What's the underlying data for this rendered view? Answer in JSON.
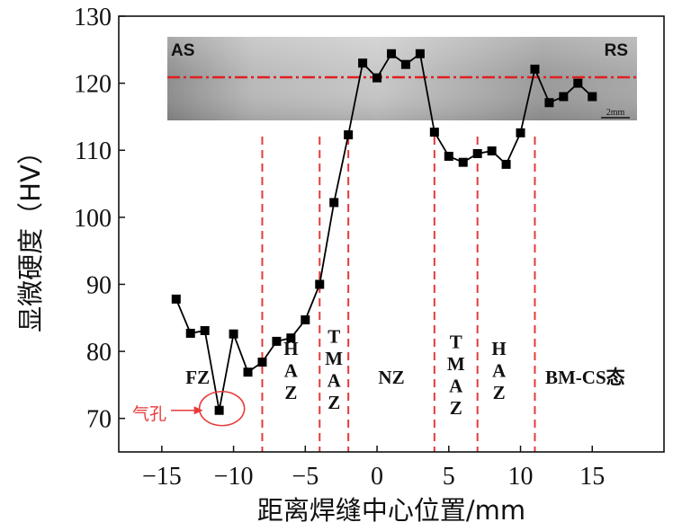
{
  "chart_data": {
    "type": "line",
    "xlabel": "距离焊缝中心位置/mm",
    "ylabel": "显微硬度（HV）",
    "xlim": [
      -18,
      20
    ],
    "ylim": [
      65,
      130
    ],
    "xticks": [
      -15,
      -10,
      -5,
      0,
      5,
      10,
      15
    ],
    "xtick_labels": [
      "−15",
      "−10",
      "−5",
      "0",
      "5",
      "10",
      "15"
    ],
    "yticks": [
      70,
      80,
      90,
      100,
      110,
      120,
      130
    ],
    "ytick_labels": [
      "70",
      "80",
      "90",
      "100",
      "110",
      "120",
      "130"
    ],
    "grid": false,
    "series": [
      {
        "marker": "square",
        "color": "#000000",
        "x": [
          -14,
          -13,
          -12,
          -11,
          -10,
          -9,
          -8,
          -7,
          -6,
          -5,
          -4,
          -3,
          -2,
          -1,
          0,
          1,
          2,
          3,
          4,
          5,
          6,
          7,
          8,
          9,
          10,
          11,
          12,
          13,
          14,
          15
        ],
        "y": [
          87.8,
          82.7,
          83.1,
          71.2,
          82.6,
          76.9,
          78.4,
          81.5,
          82.0,
          84.7,
          90.0,
          102.2,
          112.3,
          123.0,
          120.8,
          124.4,
          122.8,
          124.4,
          112.7,
          109.1,
          108.2,
          109.5,
          109.9,
          107.9,
          112.6,
          122.1,
          117.1,
          118.0,
          120.0,
          118.0
        ]
      }
    ],
    "boundaries": {
      "x": [
        -8,
        -4,
        -2,
        4,
        7,
        11
      ],
      "color": "#e23b3b",
      "style": "dashed"
    },
    "regions": [
      {
        "label": "FZ",
        "x": -12.5,
        "y": 75.2
      },
      {
        "label": "HAZ",
        "x": -6,
        "y": 79.5,
        "stacked": true
      },
      {
        "label": "TMAZ",
        "x": -3,
        "y": 81.3,
        "stacked": true
      },
      {
        "label": "NZ",
        "x": 1,
        "y": 75.2
      },
      {
        "label": "TMAZ",
        "x": 5.5,
        "y": 80.5,
        "stacked": true
      },
      {
        "label": "HAZ",
        "x": 8.5,
        "y": 79.5,
        "stacked": true
      },
      {
        "label": "BM-CS态",
        "x": 14.5,
        "y": 75.2
      }
    ],
    "annotations": [
      {
        "label": "气孔",
        "target_x": -11,
        "target_y": 71.2,
        "color": "#e83b3b"
      }
    ],
    "inset": {
      "type": "micrograph",
      "left_label": "AS",
      "right_label": "RS",
      "scale_bar": "2mm",
      "line_color": "#e02020"
    }
  }
}
